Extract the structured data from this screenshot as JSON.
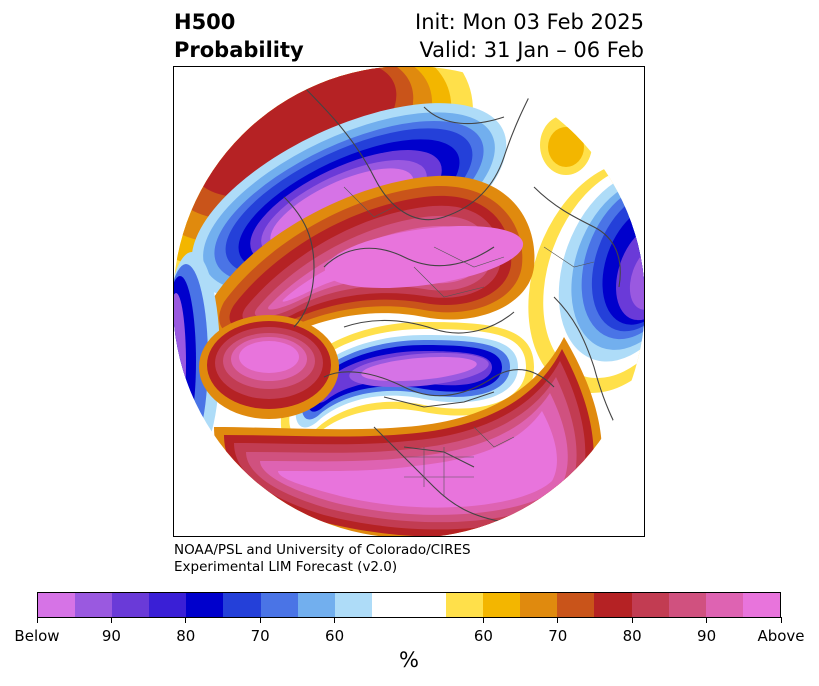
{
  "title": {
    "line1_left": "H500",
    "line2_left": "Probability",
    "line1_right": "Init: Mon 03 Feb 2025",
    "line2_right": "Valid: 31 Jan – 06 Feb"
  },
  "credit": {
    "line1": "NOAA/PSL and University of Colorado/CIRES",
    "line2": "Experimental LIM Forecast (v2.0)"
  },
  "colorbar": {
    "unit": "%",
    "colors": [
      "#d673e6",
      "#9a59e0",
      "#6a3ad8",
      "#3a1fd6",
      "#0000cc",
      "#2440d9",
      "#4a74e6",
      "#72afee",
      "#aedcf8",
      "#ffffff",
      "#ffe04a",
      "#f3b600",
      "#e08a0e",
      "#c9541a",
      "#b52224",
      "#c23c52",
      "#d0517f",
      "#de63b2",
      "#e874dc"
    ],
    "ticks": [
      "Below",
      "90",
      "80",
      "70",
      "60",
      "60",
      "70",
      "80",
      "90",
      "Above"
    ]
  },
  "map": {
    "projection": "north-polar-stereographic",
    "field": "500 hPa height anomaly probability",
    "features": [
      {
        "name": "above-normal-center-europe-siberia",
        "category": "Above"
      },
      {
        "name": "above-normal-center-arctic-greenland",
        "category": "Above"
      },
      {
        "name": "above-normal-center-north-atlantic",
        "category": "Above"
      },
      {
        "name": "below-normal-center-canada",
        "category": "Below"
      },
      {
        "name": "below-normal-center-northern-asia",
        "category": "Below"
      },
      {
        "name": "below-normal-center-east-atlantic",
        "category": "Below"
      }
    ]
  }
}
